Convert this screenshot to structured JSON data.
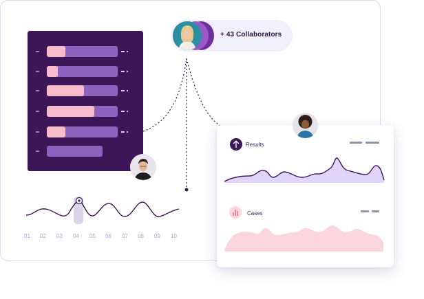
{
  "collaborators": {
    "label": "+ 43 Collaborators"
  },
  "bars": {
    "rows": [
      {
        "fill": 0.26
      },
      {
        "fill": 0.16
      },
      {
        "fill": 0.52
      },
      {
        "fill": 0.67
      },
      {
        "fill": 0.26
      },
      {
        "fill": 0.0,
        "track": 0.79
      }
    ]
  },
  "timeline": {
    "labels": [
      "01",
      "02",
      "03",
      "04",
      "05",
      "06",
      "07",
      "08",
      "09",
      "10"
    ],
    "selected": "04"
  },
  "card": {
    "results_title": "Results",
    "cases_title": "Cases"
  },
  "colors": {
    "purple_dark": "#3d1658",
    "purple_mid": "#8e63bf",
    "pink": "#f6bccb",
    "results_fill": "#e2d4f8",
    "cases_fill": "#fbd6df"
  },
  "icons": {
    "results": "arrow-up-circle-icon",
    "cases": "bar-chart-icon"
  }
}
